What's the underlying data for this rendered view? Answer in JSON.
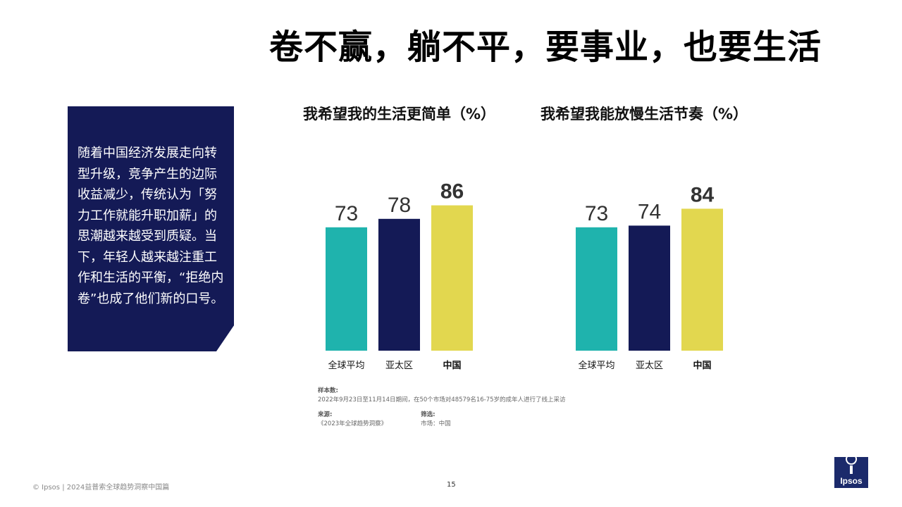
{
  "slide": {
    "title": "卷不赢，躺不平，要事业，也要生活",
    "sidebar_text": "随着中国经济发展走向转型升级，竞争产生的边际收益减少，传统认为「努力工作就能升职加薪」的思潮越来越受到质疑。当下，年轻人越来越注重工作和生活的平衡，“拒绝内卷”也成了他们新的口号。",
    "page_number": "15",
    "footer": "© Ipsos | 2024益普索全球趋势洞察中国篇",
    "logo_text": "Ipsos"
  },
  "notes": {
    "sample_label": "样本数:",
    "sample_text": "2022年9月23日至11月14日期间，在50个市场对48579名16-75岁的成年人进行了线上采访",
    "source_label": "来源:",
    "source_text": "《2023年全球趋势洞察》",
    "filter_label": "筛选:",
    "filter_text": "市场：中国"
  },
  "colors": {
    "teal": "#1fb3ad",
    "navy": "#141a56",
    "yellow": "#e2d74f",
    "box": "#141a56"
  },
  "chart_data": [
    {
      "type": "bar",
      "title": "我希望我的生活更简单（%）",
      "categories": [
        "全球平均",
        "亚太区",
        "中国"
      ],
      "values": [
        73,
        78,
        86
      ],
      "highlight": "中国",
      "bar_colors": [
        "#1fb3ad",
        "#141a56",
        "#e2d74f"
      ]
    },
    {
      "type": "bar",
      "title": "我希望我能放慢生活节奏（%）",
      "categories": [
        "全球平均",
        "亚太区",
        "中国"
      ],
      "values": [
        73,
        74,
        84
      ],
      "highlight": "中国",
      "bar_colors": [
        "#1fb3ad",
        "#141a56",
        "#e2d74f"
      ]
    }
  ]
}
